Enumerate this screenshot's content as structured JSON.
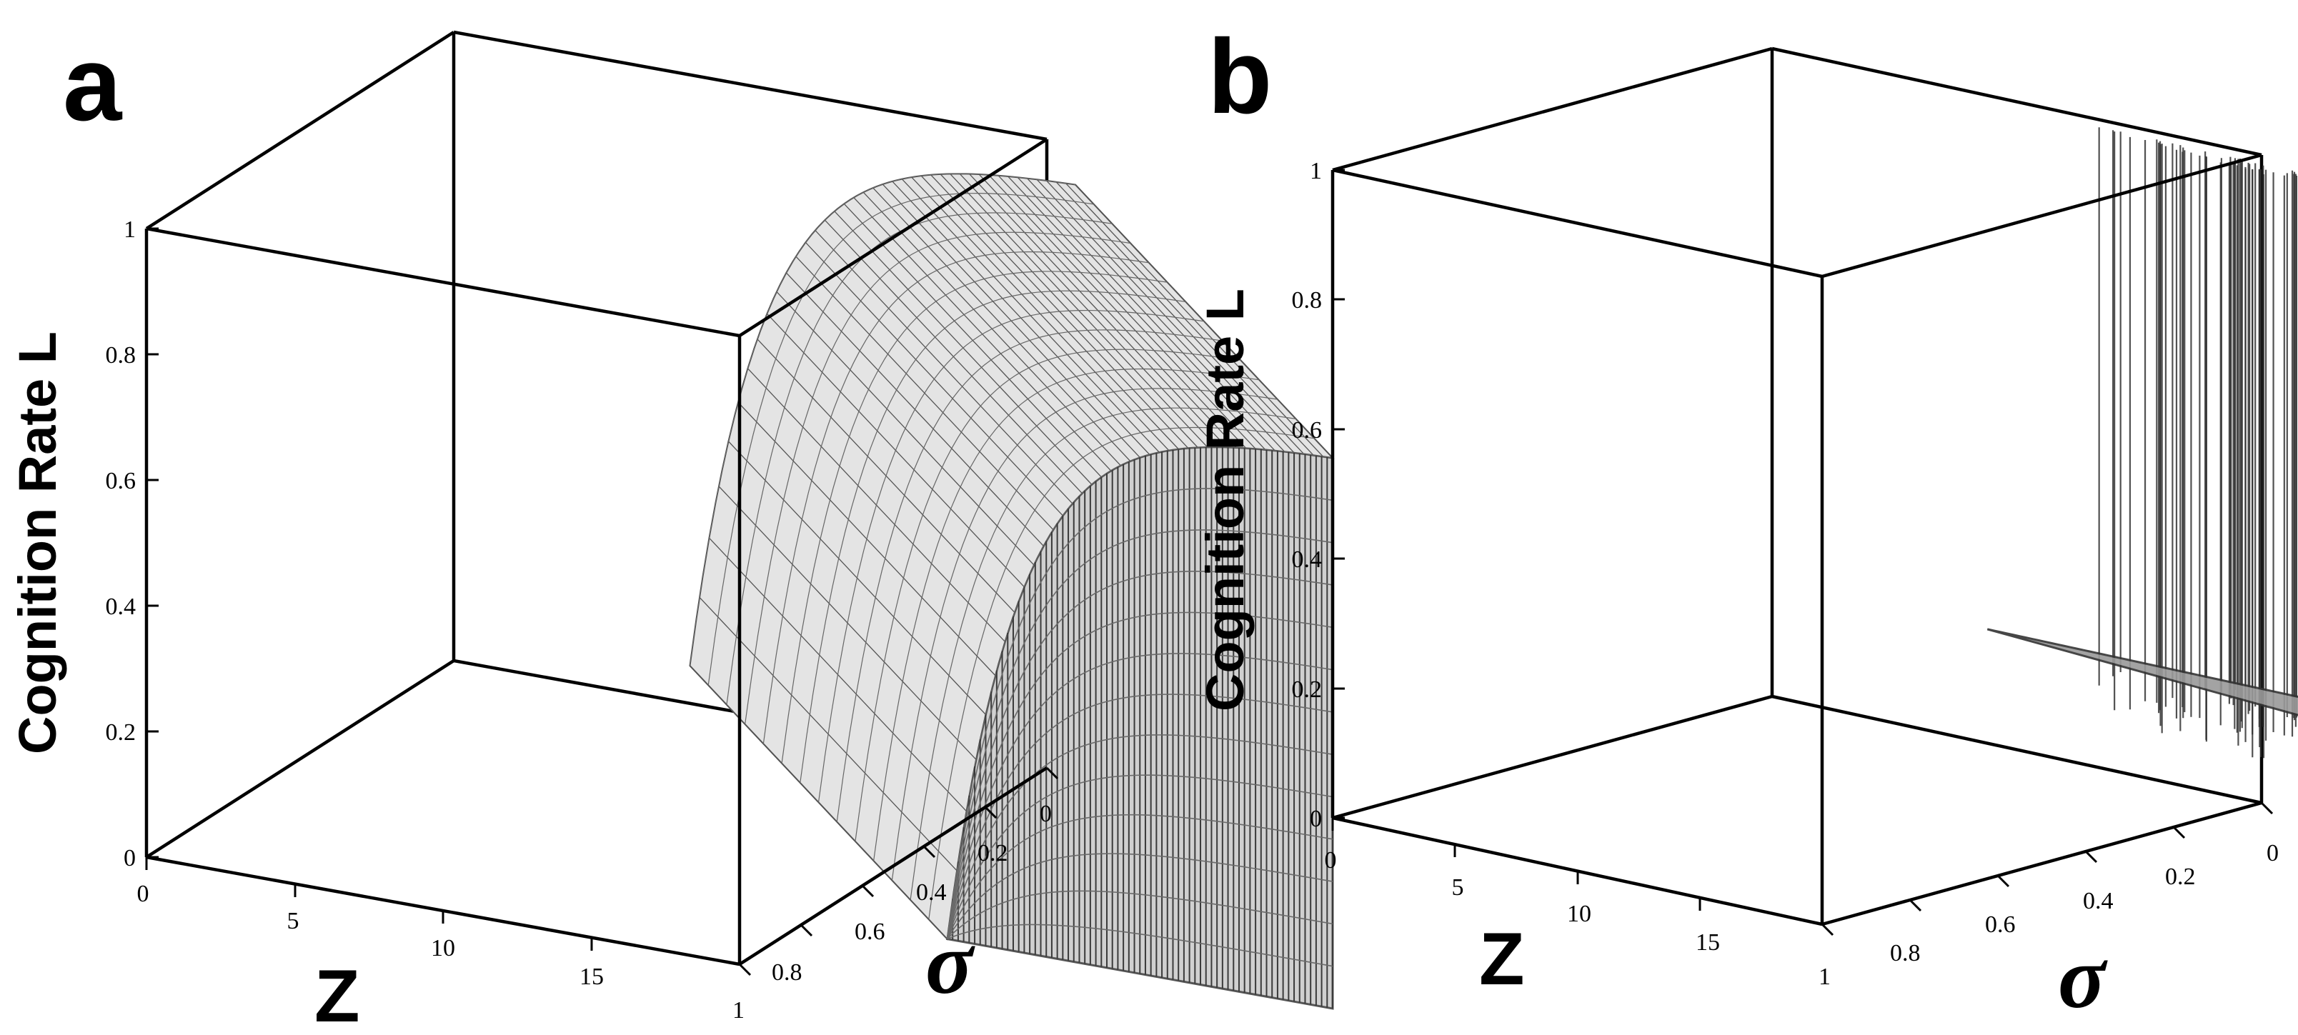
{
  "chart_data": [
    {
      "panel": "a",
      "type": "surface3d",
      "zlabel": "Cognition Rate L",
      "xlabel": "Z",
      "ylabel": "σ",
      "x_ticks": [
        "0",
        "5",
        "10",
        "15"
      ],
      "y_ticks": [
        "0",
        "0.2",
        "0.4",
        "0.6",
        "0.8",
        "1"
      ],
      "z_ticks": [
        "0",
        "0.2",
        "0.4",
        "0.6",
        "0.8",
        "1"
      ],
      "xlim": [
        0,
        20
      ],
      "ylim": [
        0,
        1
      ],
      "zlim": [
        0,
        1
      ],
      "surface": {
        "z_start": 7,
        "z_end": 20,
        "sigma_start": 0.1,
        "sigma_end": 1,
        "L_floor": 0.1,
        "L_max": 0.98,
        "profile": "rises steeply near Z = 7 and saturates toward 1 as Z increases"
      }
    },
    {
      "panel": "b",
      "type": "surface3d",
      "zlabel": "Cognition Rate L",
      "xlabel": "Z",
      "ylabel": "σ",
      "x_ticks": [
        "0",
        "5",
        "10",
        "15"
      ],
      "y_ticks": [
        "0",
        "0.2",
        "0.4",
        "0.6",
        "0.8",
        "1"
      ],
      "z_ticks": [
        "0",
        "0.2",
        "0.4",
        "0.6",
        "0.8",
        "1"
      ],
      "xlim": [
        0,
        20
      ],
      "ylim": [
        0,
        1
      ],
      "zlim": [
        0,
        1
      ],
      "surface": {
        "z_start": 7,
        "z_end": 20,
        "sigma_start": 0.1,
        "sigma_end": 1,
        "band_L": 0.18,
        "spike_L": 1,
        "profile": "narrow band near L = 0.2 with many vertical spikes reaching L = 1"
      }
    }
  ]
}
